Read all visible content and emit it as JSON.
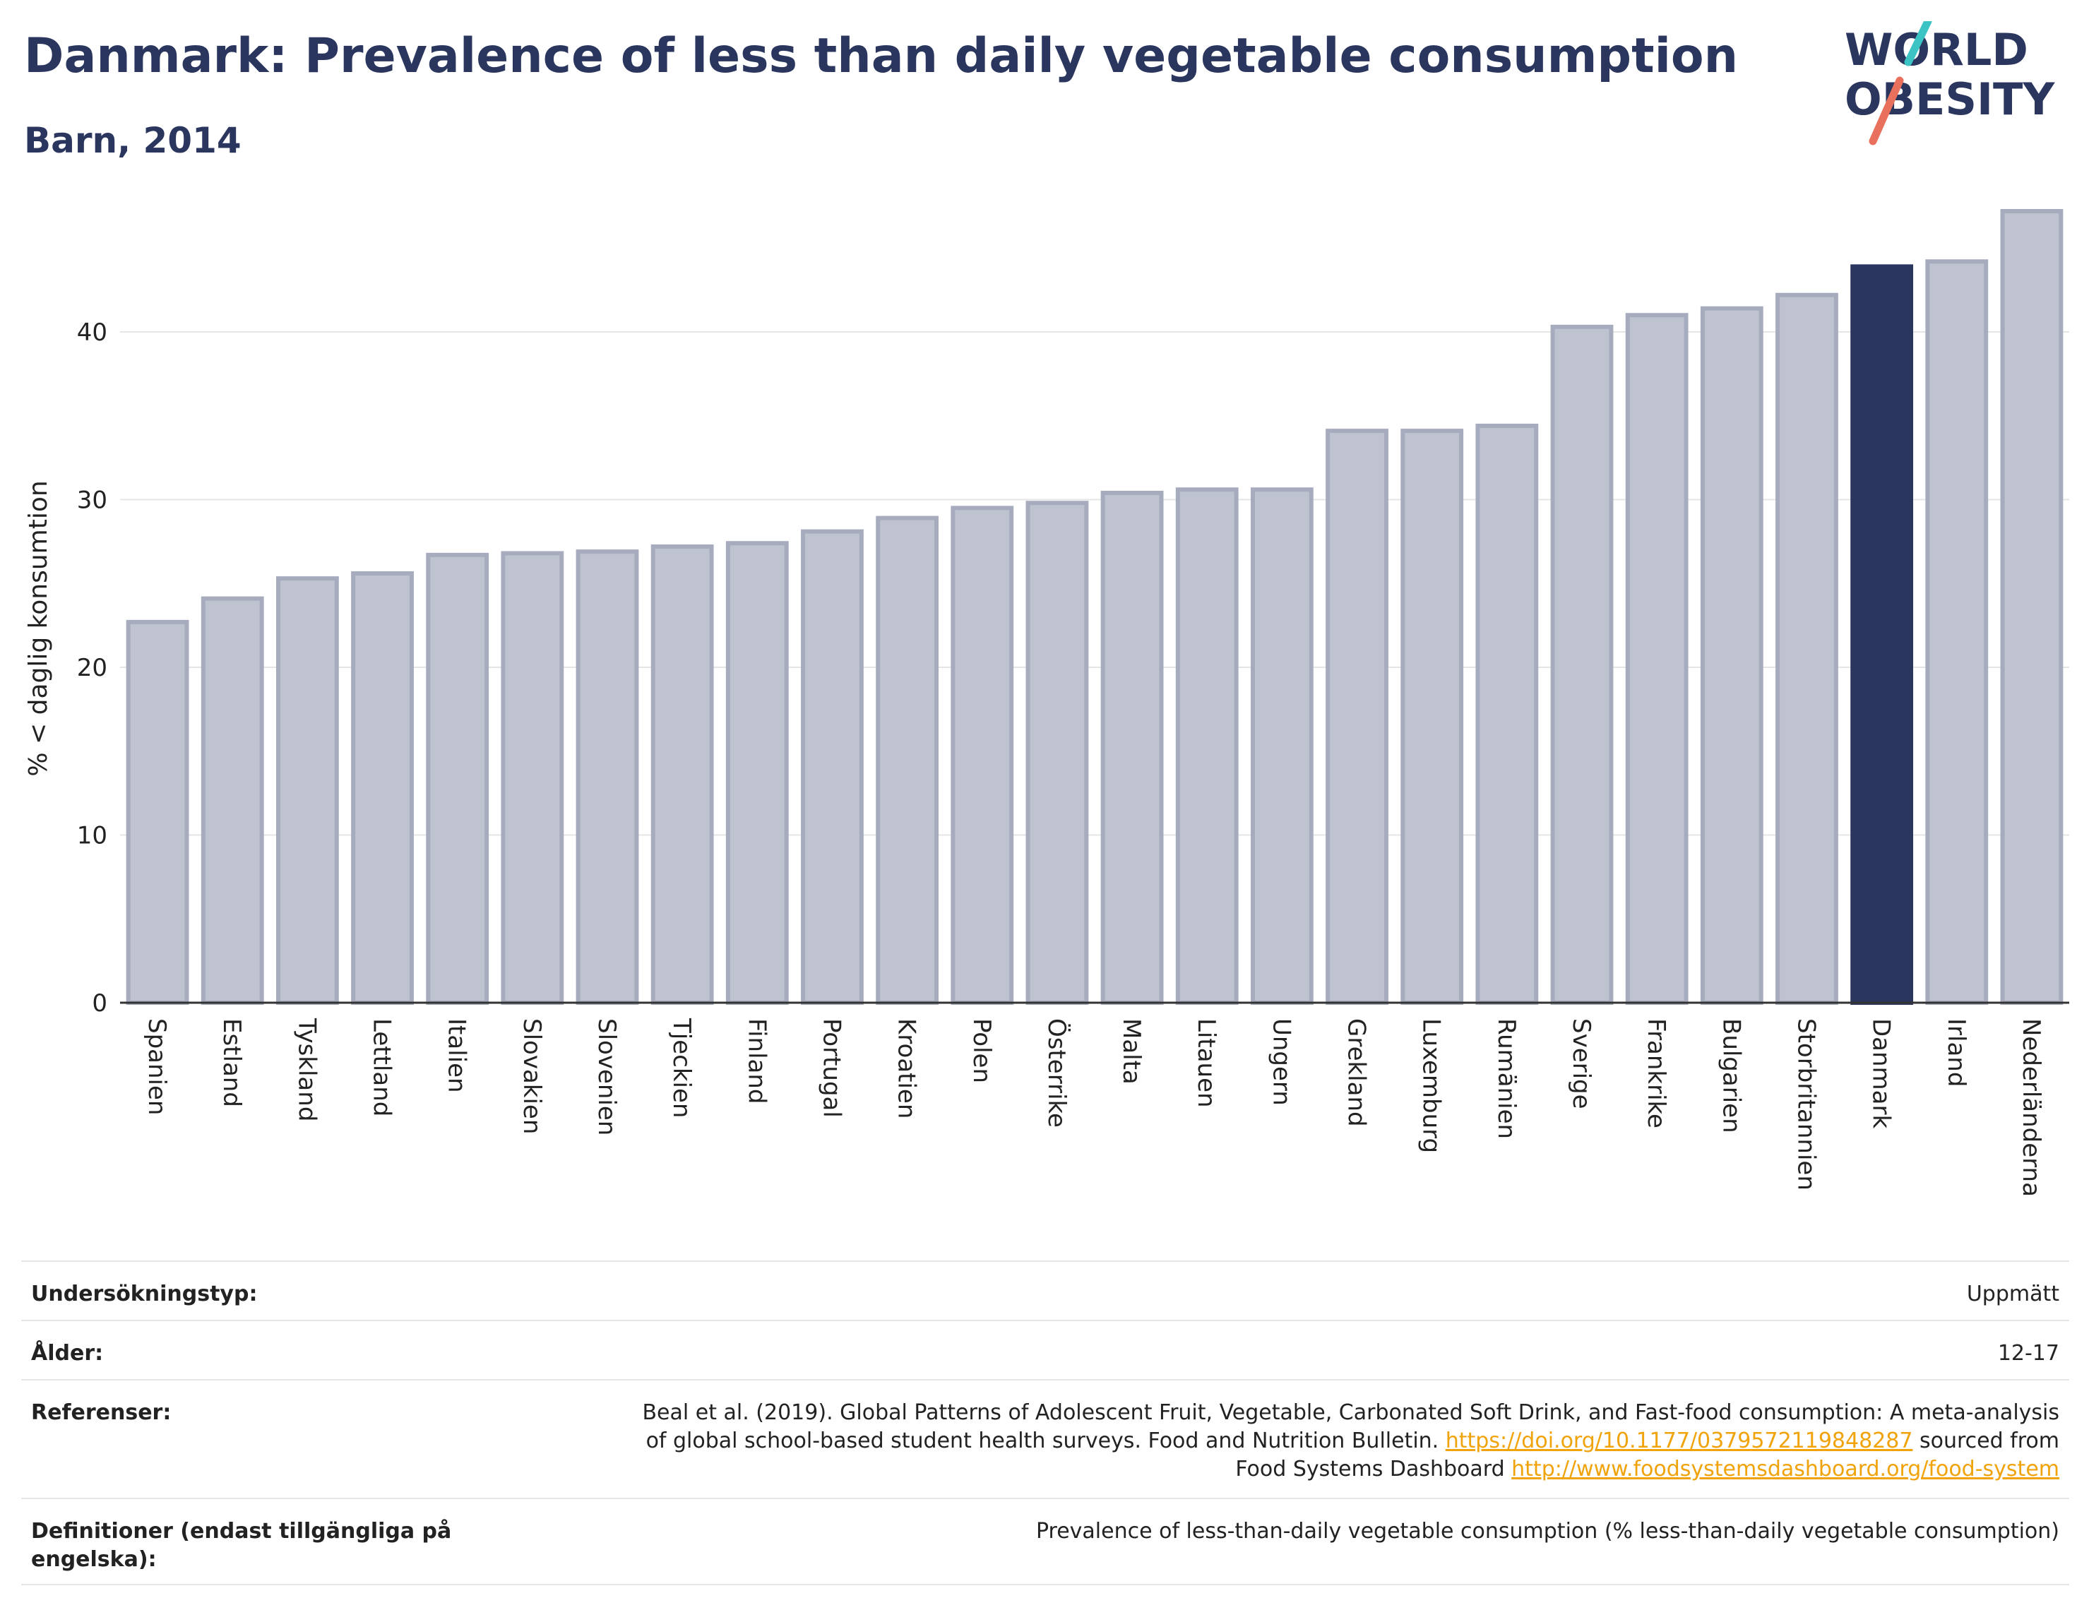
{
  "header": {
    "title": "Danmark: Prevalence of less than daily vegetable consumption",
    "subtitle": "Barn, 2014"
  },
  "logo": {
    "line1": "WORLD",
    "line2": "OBESITY",
    "accent_teal": "#3cc3c3",
    "accent_coral": "#e8705c"
  },
  "colors": {
    "bar": "#bfc3d0",
    "bar_border": "#a6abbe",
    "highlight": "#2b365e",
    "axis": "#333333",
    "grid": "#e5e5e5"
  },
  "chart_data": {
    "type": "bar",
    "ylabel": "% < daglig konsumtion",
    "ylim": [
      0,
      48
    ],
    "yticks": [
      0,
      10,
      20,
      30,
      40
    ],
    "grid": true,
    "highlight": "Danmark",
    "categories": [
      "Spanien",
      "Estland",
      "Tyskland",
      "Lettland",
      "Italien",
      "Slovakien",
      "Slovenien",
      "Tjeckien",
      "Finland",
      "Portugal",
      "Kroatien",
      "Polen",
      "Österrike",
      "Malta",
      "Litauen",
      "Ungern",
      "Grekland",
      "Luxemburg",
      "Rumänien",
      "Sverige",
      "Frankrike",
      "Bulgarien",
      "Storbritannien",
      "Danmark",
      "Irland",
      "Nederländerna"
    ],
    "values": [
      22.7,
      24.1,
      25.3,
      25.6,
      26.7,
      26.8,
      26.9,
      27.2,
      27.4,
      28.1,
      28.9,
      29.5,
      29.8,
      30.4,
      30.6,
      30.6,
      34.1,
      34.1,
      34.4,
      40.3,
      41.0,
      41.4,
      42.2,
      43.9,
      44.2,
      47.2
    ]
  },
  "meta": {
    "rows": [
      {
        "key": "Undersökningstyp:",
        "value": "Uppmätt"
      },
      {
        "key": "Ålder:",
        "value": "12-17"
      },
      {
        "key": "Referenser:",
        "value_line1": "Beal et al. (2019). Global Patterns of Adolescent Fruit, Vegetable, Carbonated Soft Drink, and Fast-food consumption: A meta-analysis",
        "value_line2_text": "of global school-based student health surveys. Food and Nutrition Bulletin. ",
        "value_line2_link": "https://doi.org/10.1177/0379572119848287",
        "value_line2_tail": " sourced from",
        "value_line3_text": "Food Systems Dashboard ",
        "value_line3_link": "http://www.foodsystemsdashboard.org/food-system"
      },
      {
        "key_line1": "Definitioner (endast tillgängliga på",
        "key_line2": "engelska):",
        "value": "Prevalence of less-than-daily vegetable consumption (% less-than-daily vegetable consumption)"
      }
    ]
  }
}
